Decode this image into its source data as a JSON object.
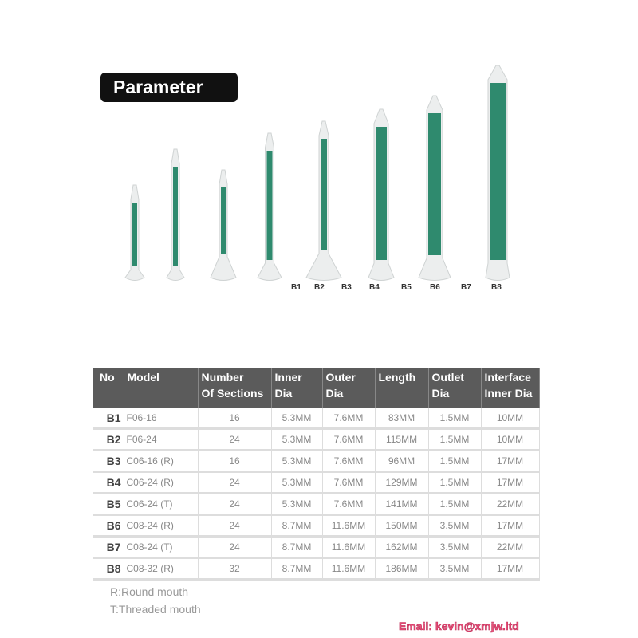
{
  "title": "Parameter",
  "product_labels": [
    "B1",
    "B2",
    "B3",
    "B4",
    "B5",
    "B6",
    "B7",
    "B8"
  ],
  "colors": {
    "element": "#2f8a6e",
    "header": "#5b5b5b",
    "email": "#e8507a"
  },
  "table": {
    "headers": [
      [
        "No",
        ""
      ],
      [
        "Model",
        ""
      ],
      [
        "Number",
        "Of Sections"
      ],
      [
        "Inner",
        "Dia"
      ],
      [
        "Outer",
        "Dia"
      ],
      [
        "Length",
        ""
      ],
      [
        "Outlet",
        "Dia"
      ],
      [
        "Interface",
        "Inner Dia"
      ]
    ],
    "rows": [
      [
        "B1",
        "F06-16",
        "16",
        "5.3MM",
        "7.6MM",
        "83MM",
        "1.5MM",
        "10MM"
      ],
      [
        "B2",
        "F06-24",
        "24",
        "5.3MM",
        "7.6MM",
        "115MM",
        "1.5MM",
        "10MM"
      ],
      [
        "B3",
        "C06-16 (R)",
        "16",
        "5.3MM",
        "7.6MM",
        "96MM",
        "1.5MM",
        "17MM"
      ],
      [
        "B4",
        "C06-24 (R)",
        "24",
        "5.3MM",
        "7.6MM",
        "129MM",
        "1.5MM",
        "17MM"
      ],
      [
        "B5",
        "C06-24 (T)",
        "24",
        "5.3MM",
        "7.6MM",
        "141MM",
        "1.5MM",
        "22MM"
      ],
      [
        "B6",
        "C08-24 (R)",
        "24",
        "8.7MM",
        "11.6MM",
        "150MM",
        "3.5MM",
        "17MM"
      ],
      [
        "B7",
        "C08-24 (T)",
        "24",
        "8.7MM",
        "11.6MM",
        "162MM",
        "3.5MM",
        "22MM"
      ],
      [
        "B8",
        "C08-32 (R)",
        "32",
        "8.7MM",
        "11.6MM",
        "186MM",
        "3.5MM",
        "17MM"
      ]
    ]
  },
  "notes": [
    "R:Round mouth",
    "T:Threaded mouth"
  ],
  "email": "Email: kevin@xmjw.ltd"
}
